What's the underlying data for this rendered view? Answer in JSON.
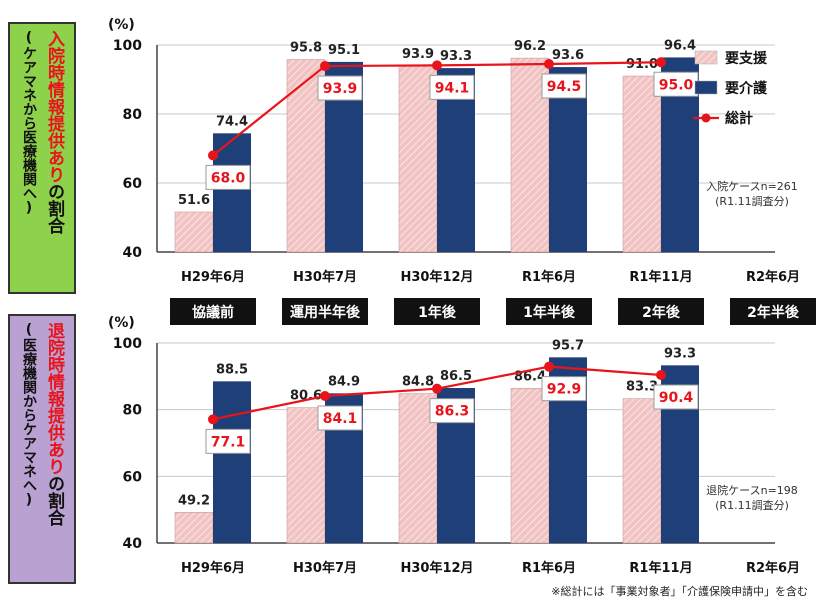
{
  "panels": [
    {
      "vertical_label": {
        "highlight": "入院時情報提供あり",
        "rest": "の割合",
        "sub": "(ケアマネから医療機関へ)",
        "bg": "#8ed14b"
      },
      "note_lines": [
        "入院ケースn=261",
        "(R1.11調査分)"
      ]
    },
    {
      "vertical_label": {
        "highlight": "退院時情報提供あり",
        "rest": "の割合",
        "sub": "(医療機関からケアマネへ)",
        "bg": "#b9a2d2"
      },
      "note_lines": [
        "退院ケースn=198",
        "(R1.11調査分)"
      ]
    }
  ],
  "phases": [
    "協議前",
    "運用半年後",
    "1年後",
    "1年半後",
    "2年後",
    "2年半後"
  ],
  "footnote": "※総計には「事業対象者」「介護保険申請中」を含む",
  "colors": {
    "support": "#f2c3c3",
    "care": "#1f3f78",
    "total": "#e8141c"
  },
  "chart_data": [
    {
      "type": "bar",
      "ylabel": "(%)",
      "ylim": [
        40,
        100
      ],
      "yticks": [
        40,
        60,
        80,
        100
      ],
      "categories": [
        "H29年6月",
        "H30年7月",
        "H30年12月",
        "R1年6月",
        "R1年11月",
        "R2年6月"
      ],
      "series": [
        {
          "name": "要支援",
          "values": [
            51.6,
            95.8,
            93.9,
            96.2,
            91.0,
            null
          ]
        },
        {
          "name": "要介護",
          "values": [
            74.4,
            95.1,
            93.3,
            93.6,
            96.4,
            null
          ]
        },
        {
          "name": "総計",
          "type": "line",
          "values": [
            68.0,
            93.9,
            94.1,
            94.5,
            95.0,
            null
          ]
        }
      ],
      "legend": "top-right"
    },
    {
      "type": "bar",
      "ylabel": "(%)",
      "ylim": [
        40,
        100
      ],
      "yticks": [
        40,
        60,
        80,
        100
      ],
      "categories": [
        "H29年6月",
        "H30年7月",
        "H30年12月",
        "R1年6月",
        "R1年11月",
        "R2年6月"
      ],
      "series": [
        {
          "name": "要支援",
          "values": [
            49.2,
            80.6,
            84.8,
            86.4,
            83.3,
            null
          ]
        },
        {
          "name": "要介護",
          "values": [
            88.5,
            84.9,
            86.5,
            95.7,
            93.3,
            null
          ]
        },
        {
          "name": "総計",
          "type": "line",
          "values": [
            77.1,
            84.1,
            86.3,
            92.9,
            90.4,
            null
          ]
        }
      ]
    }
  ]
}
